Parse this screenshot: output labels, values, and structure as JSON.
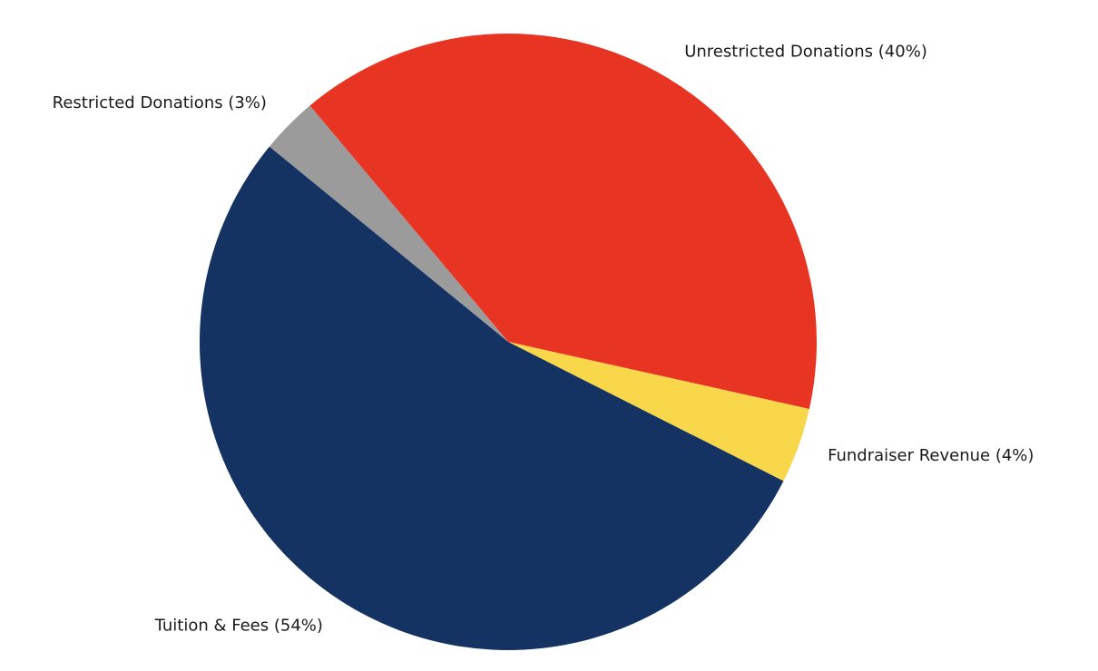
{
  "chart_data": {
    "type": "pie",
    "title": "",
    "slices": [
      {
        "label": "Unrestricted Donations (40%)",
        "category": "Unrestricted Donations",
        "value": 40,
        "color": "#e83523"
      },
      {
        "label": "Fundraiser Revenue (4%)",
        "category": "Fundraiser Revenue",
        "value": 4,
        "color": "#f8d84a"
      },
      {
        "label": "Tuition & Fees (54%)",
        "category": "Tuition & Fees",
        "value": 54,
        "color": "#143262"
      },
      {
        "label": "Restricted Donations (3%)",
        "category": "Restricted Donations",
        "value": 3,
        "color": "#9b9b9b"
      }
    ]
  }
}
